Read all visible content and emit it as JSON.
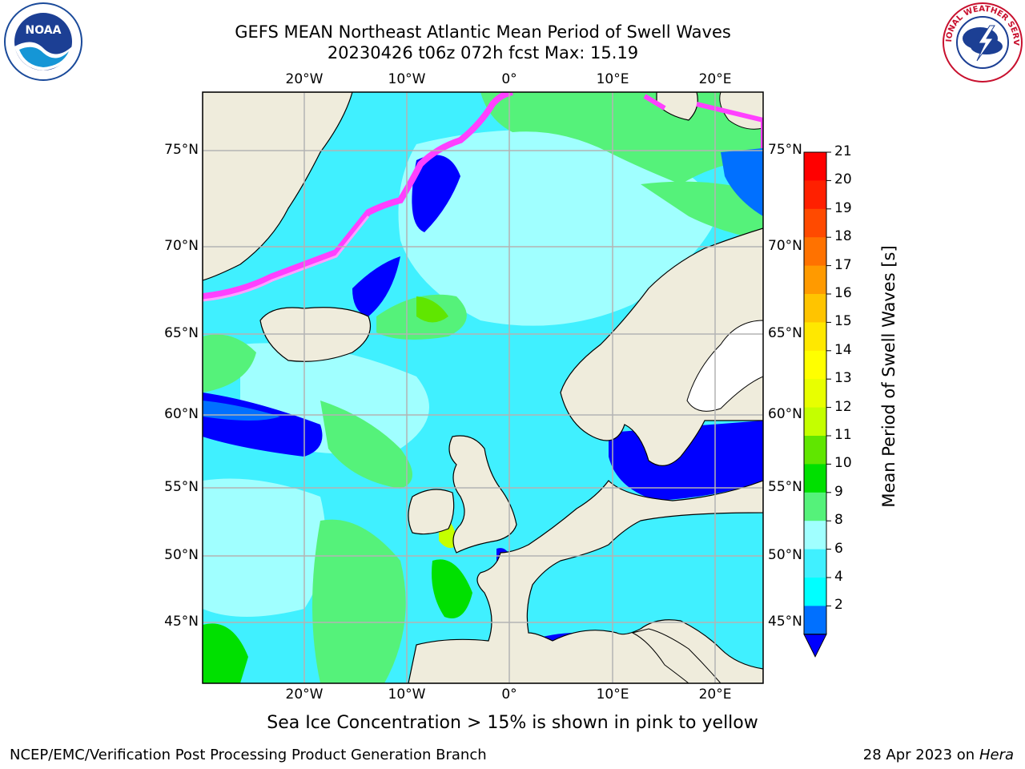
{
  "header": {
    "title_line1": "GEFS MEAN Northeast Atlantic Mean Period of Swell Waves",
    "title_line2": "20230426 t06z 072h fcst   Max: 15.19"
  },
  "logos": {
    "left": "NOAA",
    "right": "NATIONAL WEATHER SERVICE"
  },
  "map": {
    "lon_labels": [
      "20°W",
      "10°W",
      "0°",
      "10°E",
      "20°E"
    ],
    "lat_labels": [
      "75°N",
      "70°N",
      "65°N",
      "60°N",
      "55°N",
      "50°N",
      "45°N"
    ],
    "land_color": "#efecdc",
    "grid_color": "#b3b3b3",
    "ice_colors": [
      "#ff40ff",
      "#ffa0ff",
      "#ffd060",
      "#ffff60"
    ]
  },
  "colorbar": {
    "title": "Mean Period of Swell Waves [s]",
    "ticks": [
      "21",
      "20",
      "19",
      "18",
      "17",
      "16",
      "15",
      "14",
      "13",
      "12",
      "11",
      "10",
      "9",
      "8",
      "6",
      "4",
      "2"
    ],
    "colors": [
      "#ff0000",
      "#ff2000",
      "#ff4a00",
      "#ff7200",
      "#ff9a00",
      "#ffc400",
      "#ffe800",
      "#ffff00",
      "#e8ff00",
      "#c4ff00",
      "#60e600",
      "#00e000",
      "#55f27a",
      "#a0ffff",
      "#40f0ff",
      "#00ffff",
      "#0070ff"
    ],
    "extend_color": "#0000ff"
  },
  "footer": {
    "note": "Sea Ice Concentration > 15% is shown in pink to yellow",
    "credit": "NCEP/EMC/Verification Post Processing Product Generation Branch",
    "date": "28 Apr 2023 on",
    "host": "Hera"
  }
}
